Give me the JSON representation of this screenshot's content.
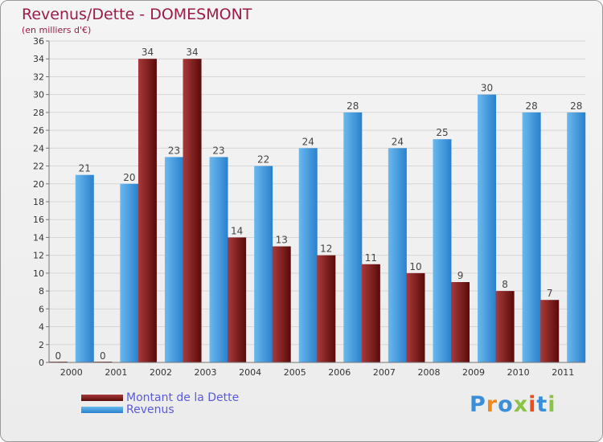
{
  "chart_data": {
    "type": "bar",
    "title": "Revenus/Dette - DOMESMONT",
    "subtitle": "(en milliers d'€)",
    "categories": [
      "2000",
      "2001",
      "2002",
      "2003",
      "2004",
      "2005",
      "2006",
      "2007",
      "2008",
      "2009",
      "2010",
      "2011"
    ],
    "series": [
      {
        "name": "Montant de la Dette",
        "color": "#7a1515",
        "values": [
          0,
          0,
          34,
          34,
          14,
          13,
          12,
          11,
          10,
          9,
          8,
          7
        ]
      },
      {
        "name": "Revenus",
        "color": "#3d9be0",
        "values": [
          21,
          20,
          23,
          23,
          22,
          24,
          28,
          24,
          25,
          30,
          28,
          28
        ]
      }
    ],
    "ylim": [
      0,
      36
    ],
    "yticks": [
      0,
      2,
      4,
      6,
      8,
      10,
      12,
      14,
      16,
      18,
      20,
      22,
      24,
      26,
      28,
      30,
      32,
      34,
      36
    ],
    "grid": true,
    "legend_position": "bottom-left"
  },
  "brand": {
    "letters": [
      "P",
      "r",
      "o",
      "x",
      "i",
      "t",
      "i"
    ],
    "colors": [
      "#3a8fd8",
      "#f08a1c",
      "#3a8fd8",
      "#8bc34a",
      "#e94e1b",
      "#3a8fd8",
      "#8bc34a"
    ]
  }
}
